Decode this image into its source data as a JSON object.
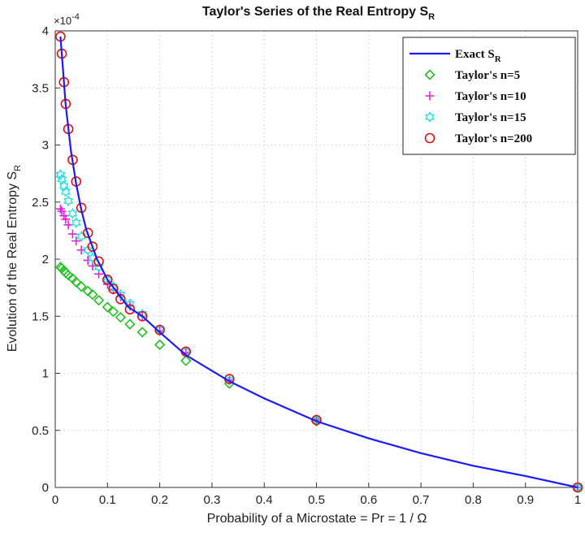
{
  "chart_data": {
    "type": "scatter",
    "title": "Taylor's Series of the Real Entropy S",
    "title_subscript": "R",
    "xlabel": "Probability of a Microstate = Pr = 1 / Ω",
    "ylabel": "Evolution of the Real Entropy  S",
    "ylabel_subscript": "R",
    "y_exponent_label": "×10",
    "y_exponent_power": "-4",
    "xlim": [
      0,
      1
    ],
    "ylim": [
      0,
      4
    ],
    "x_ticks": [
      "0",
      "0.1",
      "0.2",
      "0.3",
      "0.4",
      "0.5",
      "0.6",
      "0.7",
      "0.8",
      "0.9",
      "1"
    ],
    "y_ticks": [
      "0",
      "0.5",
      "1",
      "1.5",
      "2",
      "2.5",
      "3",
      "3.5",
      "4"
    ],
    "grid": true,
    "legend_position": "top-right",
    "series": [
      {
        "name": "Exact S",
        "name_subscript": "R",
        "style": "line",
        "color": "#1a1aff",
        "x": [
          0.01,
          0.02,
          0.03,
          0.04,
          0.05,
          0.06,
          0.08,
          0.1,
          0.12,
          0.14,
          0.1667,
          0.2,
          0.25,
          0.3333,
          0.4,
          0.5,
          0.6,
          0.7,
          0.8,
          0.9,
          1.0
        ],
        "y": [
          3.95,
          3.35,
          2.95,
          2.66,
          2.43,
          2.25,
          2.0,
          1.82,
          1.7,
          1.58,
          1.5,
          1.36,
          1.16,
          0.93,
          0.78,
          0.58,
          0.43,
          0.3,
          0.19,
          0.1,
          0.0
        ]
      },
      {
        "name": "Taylor's n=5",
        "style": "diamond",
        "color": "#22c022",
        "x": [
          0.01,
          0.0125,
          0.0167,
          0.02,
          0.025,
          0.0333,
          0.04,
          0.05,
          0.0625,
          0.0714,
          0.0833,
          0.1,
          0.1111,
          0.125,
          0.1429,
          0.1667,
          0.2,
          0.25,
          0.3333,
          0.5,
          1.0
        ],
        "y": [
          1.93,
          1.92,
          1.9,
          1.88,
          1.86,
          1.83,
          1.8,
          1.76,
          1.72,
          1.69,
          1.64,
          1.58,
          1.54,
          1.49,
          1.43,
          1.36,
          1.25,
          1.11,
          0.91,
          0.58,
          0.0
        ]
      },
      {
        "name": "Taylor's n=10",
        "style": "plus",
        "color": "#e020e0",
        "x": [
          0.01,
          0.0125,
          0.0167,
          0.02,
          0.025,
          0.0333,
          0.04,
          0.05,
          0.0625,
          0.0714,
          0.0833,
          0.1,
          0.1111,
          0.125,
          0.1429,
          0.1667,
          0.2,
          0.25,
          0.3333,
          0.5,
          1.0
        ],
        "y": [
          2.44,
          2.42,
          2.38,
          2.35,
          2.3,
          2.22,
          2.16,
          2.08,
          1.99,
          1.94,
          1.87,
          1.78,
          1.73,
          1.67,
          1.59,
          1.5,
          1.37,
          1.18,
          0.94,
          0.59,
          0.0
        ]
      },
      {
        "name": "Taylor's n=15",
        "style": "hexagram",
        "color": "#20e0e0",
        "x": [
          0.01,
          0.0125,
          0.0167,
          0.02,
          0.025,
          0.0333,
          0.04,
          0.05,
          0.0625,
          0.0714,
          0.0833,
          0.1,
          0.1111,
          0.125,
          0.1429,
          0.1667,
          0.2,
          0.25,
          0.3333,
          0.5,
          1.0
        ],
        "y": [
          2.74,
          2.7,
          2.64,
          2.59,
          2.51,
          2.4,
          2.32,
          2.2,
          2.08,
          2.01,
          1.93,
          1.82,
          1.76,
          1.69,
          1.61,
          1.52,
          1.38,
          1.19,
          0.94,
          0.59,
          0.0
        ]
      },
      {
        "name": "Taylor's n=200",
        "style": "circle",
        "color": "#e01010",
        "x": [
          0.01,
          0.0125,
          0.0167,
          0.02,
          0.025,
          0.0333,
          0.04,
          0.05,
          0.0625,
          0.0714,
          0.0833,
          0.1,
          0.1111,
          0.125,
          0.1429,
          0.1667,
          0.2,
          0.25,
          0.3333,
          0.5,
          1.0
        ],
        "y": [
          3.95,
          3.8,
          3.55,
          3.36,
          3.14,
          2.87,
          2.68,
          2.45,
          2.23,
          2.11,
          1.98,
          1.82,
          1.74,
          1.65,
          1.56,
          1.5,
          1.38,
          1.19,
          0.95,
          0.59,
          0.0
        ]
      }
    ]
  }
}
